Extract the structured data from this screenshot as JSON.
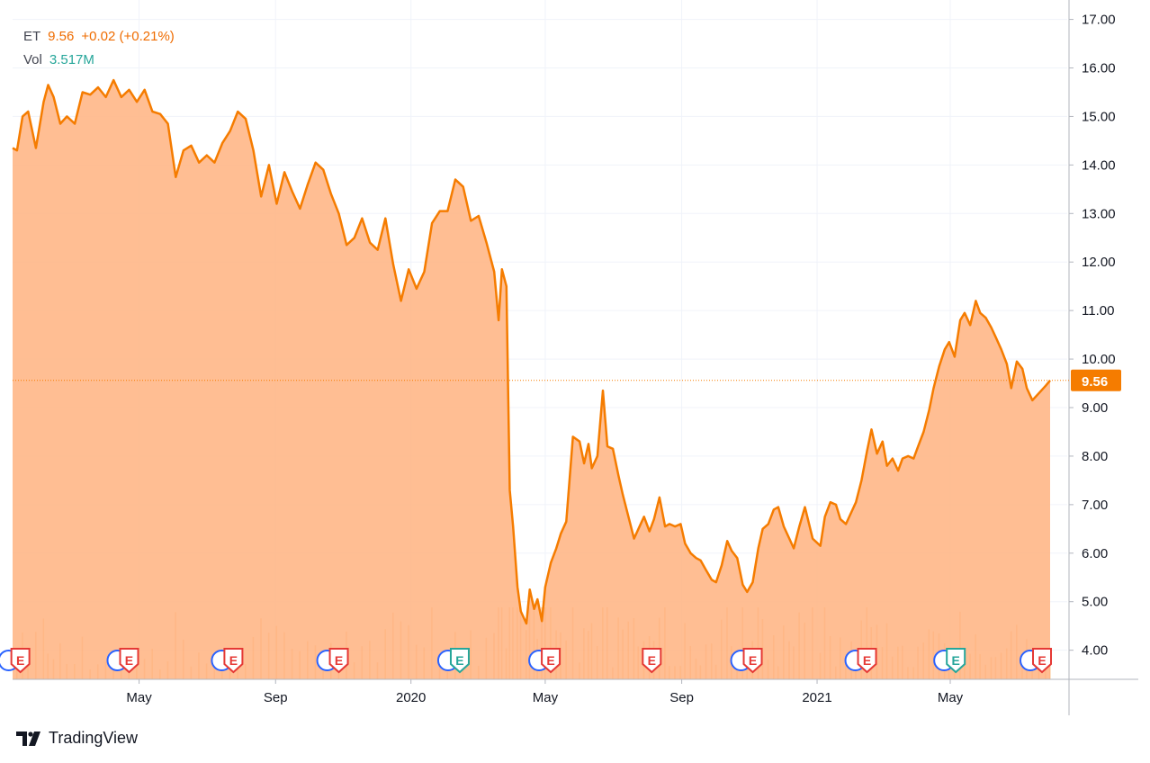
{
  "legend": {
    "symbol": "ET",
    "price": "9.56",
    "change": "+0.02 (+0.21%)",
    "vol_label": "Vol",
    "vol_value": "3.517M"
  },
  "brand": {
    "name": "TradingView"
  },
  "colors": {
    "line": "#f57c00",
    "area": "#ffb380",
    "grid": "#f0f3fa",
    "axis_text": "#131722",
    "price_label_bg": "#f57c00",
    "earnings_red": "#e53935",
    "earnings_teal": "#26a69a",
    "dividend_blue": "#2962ff"
  },
  "chart_data": {
    "type": "area",
    "symbol": "ET",
    "last_price_label": "9.56",
    "ylim": [
      3.4,
      17.4
    ],
    "y_ticks": [
      "4.00",
      "5.00",
      "6.00",
      "7.00",
      "8.00",
      "9.00",
      "10.00",
      "11.00",
      "12.00",
      "13.00",
      "14.00",
      "15.00",
      "16.00",
      "17.00"
    ],
    "x_range": [
      "2019-01-07",
      "2021-07-30"
    ],
    "x_ticks": [
      {
        "label": "May",
        "date": "2019-05-01"
      },
      {
        "label": "Sep",
        "date": "2019-09-01"
      },
      {
        "label": "2020",
        "date": "2020-01-01"
      },
      {
        "label": "May",
        "date": "2020-05-01"
      },
      {
        "label": "Sep",
        "date": "2020-09-01"
      },
      {
        "label": "2021",
        "date": "2021-01-01"
      },
      {
        "label": "May",
        "date": "2021-05-01"
      }
    ],
    "series": [
      {
        "points": [
          [
            "2019-01-07",
            14.35
          ],
          [
            "2019-01-11",
            14.3
          ],
          [
            "2019-01-16",
            15.0
          ],
          [
            "2019-01-21",
            15.1
          ],
          [
            "2019-01-28",
            14.35
          ],
          [
            "2019-02-04",
            15.3
          ],
          [
            "2019-02-08",
            15.65
          ],
          [
            "2019-02-13",
            15.4
          ],
          [
            "2019-02-19",
            14.85
          ],
          [
            "2019-02-25",
            15.0
          ],
          [
            "2019-03-04",
            14.85
          ],
          [
            "2019-03-11",
            15.5
          ],
          [
            "2019-03-18",
            15.45
          ],
          [
            "2019-03-25",
            15.6
          ],
          [
            "2019-04-01",
            15.4
          ],
          [
            "2019-04-08",
            15.75
          ],
          [
            "2019-04-15",
            15.4
          ],
          [
            "2019-04-22",
            15.55
          ],
          [
            "2019-04-29",
            15.3
          ],
          [
            "2019-05-06",
            15.55
          ],
          [
            "2019-05-13",
            15.1
          ],
          [
            "2019-05-20",
            15.05
          ],
          [
            "2019-05-27",
            14.85
          ],
          [
            "2019-06-03",
            13.75
          ],
          [
            "2019-06-10",
            14.3
          ],
          [
            "2019-06-17",
            14.4
          ],
          [
            "2019-06-24",
            14.05
          ],
          [
            "2019-07-01",
            14.2
          ],
          [
            "2019-07-08",
            14.05
          ],
          [
            "2019-07-15",
            14.45
          ],
          [
            "2019-07-22",
            14.7
          ],
          [
            "2019-07-29",
            15.1
          ],
          [
            "2019-08-05",
            14.95
          ],
          [
            "2019-08-12",
            14.3
          ],
          [
            "2019-08-19",
            13.35
          ],
          [
            "2019-08-26",
            14.0
          ],
          [
            "2019-09-02",
            13.2
          ],
          [
            "2019-09-09",
            13.85
          ],
          [
            "2019-09-16",
            13.45
          ],
          [
            "2019-09-23",
            13.1
          ],
          [
            "2019-09-30",
            13.6
          ],
          [
            "2019-10-07",
            14.05
          ],
          [
            "2019-10-14",
            13.9
          ],
          [
            "2019-10-21",
            13.4
          ],
          [
            "2019-10-28",
            13.0
          ],
          [
            "2019-11-04",
            12.35
          ],
          [
            "2019-11-11",
            12.5
          ],
          [
            "2019-11-18",
            12.9
          ],
          [
            "2019-11-25",
            12.4
          ],
          [
            "2019-12-02",
            12.25
          ],
          [
            "2019-12-09",
            12.9
          ],
          [
            "2019-12-16",
            11.95
          ],
          [
            "2019-12-23",
            11.2
          ],
          [
            "2019-12-30",
            11.85
          ],
          [
            "2020-01-06",
            11.45
          ],
          [
            "2020-01-13",
            11.8
          ],
          [
            "2020-01-20",
            12.8
          ],
          [
            "2020-01-27",
            13.05
          ],
          [
            "2020-02-03",
            13.05
          ],
          [
            "2020-02-10",
            13.7
          ],
          [
            "2020-02-17",
            13.55
          ],
          [
            "2020-02-24",
            12.85
          ],
          [
            "2020-03-02",
            12.95
          ],
          [
            "2020-03-09",
            12.4
          ],
          [
            "2020-03-16",
            11.8
          ],
          [
            "2020-03-20",
            10.8
          ],
          [
            "2020-03-23",
            11.85
          ],
          [
            "2020-03-27",
            11.5
          ],
          [
            "2020-03-30",
            7.3
          ],
          [
            "2020-04-02",
            6.55
          ],
          [
            "2020-04-06",
            5.3
          ],
          [
            "2020-04-09",
            4.8
          ],
          [
            "2020-04-14",
            4.55
          ],
          [
            "2020-04-17",
            5.25
          ],
          [
            "2020-04-21",
            4.85
          ],
          [
            "2020-04-24",
            5.05
          ],
          [
            "2020-04-28",
            4.6
          ],
          [
            "2020-05-01",
            5.3
          ],
          [
            "2020-05-06",
            5.8
          ],
          [
            "2020-05-11",
            6.1
          ],
          [
            "2020-05-15",
            6.4
          ],
          [
            "2020-05-20",
            6.65
          ],
          [
            "2020-05-26",
            8.4
          ],
          [
            "2020-06-01",
            8.3
          ],
          [
            "2020-06-05",
            7.85
          ],
          [
            "2020-06-09",
            8.25
          ],
          [
            "2020-06-12",
            7.75
          ],
          [
            "2020-06-17",
            8.0
          ],
          [
            "2020-06-22",
            9.35
          ],
          [
            "2020-06-26",
            8.2
          ],
          [
            "2020-07-01",
            8.15
          ],
          [
            "2020-07-06",
            7.6
          ],
          [
            "2020-07-10",
            7.2
          ],
          [
            "2020-07-15",
            6.75
          ],
          [
            "2020-07-20",
            6.3
          ],
          [
            "2020-07-24",
            6.5
          ],
          [
            "2020-07-29",
            6.75
          ],
          [
            "2020-08-03",
            6.45
          ],
          [
            "2020-08-07",
            6.7
          ],
          [
            "2020-08-12",
            7.15
          ],
          [
            "2020-08-17",
            6.55
          ],
          [
            "2020-08-21",
            6.6
          ],
          [
            "2020-08-26",
            6.55
          ],
          [
            "2020-08-31",
            6.6
          ],
          [
            "2020-09-04",
            6.2
          ],
          [
            "2020-09-09",
            6.0
          ],
          [
            "2020-09-14",
            5.9
          ],
          [
            "2020-09-18",
            5.85
          ],
          [
            "2020-09-23",
            5.65
          ],
          [
            "2020-09-28",
            5.45
          ],
          [
            "2020-10-02",
            5.4
          ],
          [
            "2020-10-07",
            5.75
          ],
          [
            "2020-10-12",
            6.25
          ],
          [
            "2020-10-16",
            6.05
          ],
          [
            "2020-10-21",
            5.9
          ],
          [
            "2020-10-26",
            5.35
          ],
          [
            "2020-10-30",
            5.2
          ],
          [
            "2020-11-04",
            5.4
          ],
          [
            "2020-11-09",
            6.1
          ],
          [
            "2020-11-13",
            6.5
          ],
          [
            "2020-11-18",
            6.6
          ],
          [
            "2020-11-23",
            6.9
          ],
          [
            "2020-11-27",
            6.95
          ],
          [
            "2020-12-02",
            6.55
          ],
          [
            "2020-12-07",
            6.3
          ],
          [
            "2020-12-11",
            6.1
          ],
          [
            "2020-12-16",
            6.55
          ],
          [
            "2020-12-21",
            6.95
          ],
          [
            "2020-12-28",
            6.3
          ],
          [
            "2021-01-04",
            6.15
          ],
          [
            "2021-01-08",
            6.75
          ],
          [
            "2021-01-13",
            7.05
          ],
          [
            "2021-01-18",
            7.0
          ],
          [
            "2021-01-22",
            6.7
          ],
          [
            "2021-01-27",
            6.6
          ],
          [
            "2021-02-01",
            6.85
          ],
          [
            "2021-02-05",
            7.05
          ],
          [
            "2021-02-10",
            7.5
          ],
          [
            "2021-02-15",
            8.1
          ],
          [
            "2021-02-19",
            8.55
          ],
          [
            "2021-02-24",
            8.05
          ],
          [
            "2021-03-01",
            8.3
          ],
          [
            "2021-03-05",
            7.8
          ],
          [
            "2021-03-10",
            7.95
          ],
          [
            "2021-03-15",
            7.7
          ],
          [
            "2021-03-19",
            7.95
          ],
          [
            "2021-03-24",
            8.0
          ],
          [
            "2021-03-29",
            7.95
          ],
          [
            "2021-04-02",
            8.2
          ],
          [
            "2021-04-07",
            8.5
          ],
          [
            "2021-04-12",
            8.95
          ],
          [
            "2021-04-16",
            9.4
          ],
          [
            "2021-04-21",
            9.85
          ],
          [
            "2021-04-26",
            10.2
          ],
          [
            "2021-04-30",
            10.35
          ],
          [
            "2021-05-05",
            10.05
          ],
          [
            "2021-05-10",
            10.8
          ],
          [
            "2021-05-14",
            10.95
          ],
          [
            "2021-05-19",
            10.7
          ],
          [
            "2021-05-24",
            11.2
          ],
          [
            "2021-05-28",
            10.95
          ],
          [
            "2021-06-02",
            10.85
          ],
          [
            "2021-06-07",
            10.65
          ],
          [
            "2021-06-11",
            10.45
          ],
          [
            "2021-06-16",
            10.2
          ],
          [
            "2021-06-21",
            9.9
          ],
          [
            "2021-06-25",
            9.4
          ],
          [
            "2021-06-30",
            9.95
          ],
          [
            "2021-07-05",
            9.8
          ],
          [
            "2021-07-09",
            9.4
          ],
          [
            "2021-07-14",
            9.15
          ],
          [
            "2021-07-20",
            9.3
          ],
          [
            "2021-07-26",
            9.45
          ],
          [
            "2021-07-30",
            9.56
          ]
        ]
      }
    ],
    "events": [
      {
        "date": "2019-01-14",
        "types": [
          "D",
          "E"
        ]
      },
      {
        "date": "2019-04-22",
        "types": [
          "D",
          "E"
        ]
      },
      {
        "date": "2019-07-25",
        "types": [
          "D",
          "E"
        ]
      },
      {
        "date": "2019-10-28",
        "types": [
          "D",
          "E"
        ]
      },
      {
        "date": "2020-02-14",
        "types": [
          "D",
          "E"
        ],
        "color": "teal"
      },
      {
        "date": "2020-05-06",
        "types": [
          "D",
          "E"
        ]
      },
      {
        "date": "2020-08-05",
        "types": [
          "E"
        ]
      },
      {
        "date": "2020-11-04",
        "types": [
          "D",
          "E"
        ]
      },
      {
        "date": "2021-02-15",
        "types": [
          "D",
          "E"
        ]
      },
      {
        "date": "2021-05-06",
        "types": [
          "D",
          "E"
        ],
        "color": "teal"
      },
      {
        "date": "2021-07-30",
        "types": [
          "D",
          "E"
        ]
      }
    ],
    "grid": true,
    "axis_position": "right"
  }
}
